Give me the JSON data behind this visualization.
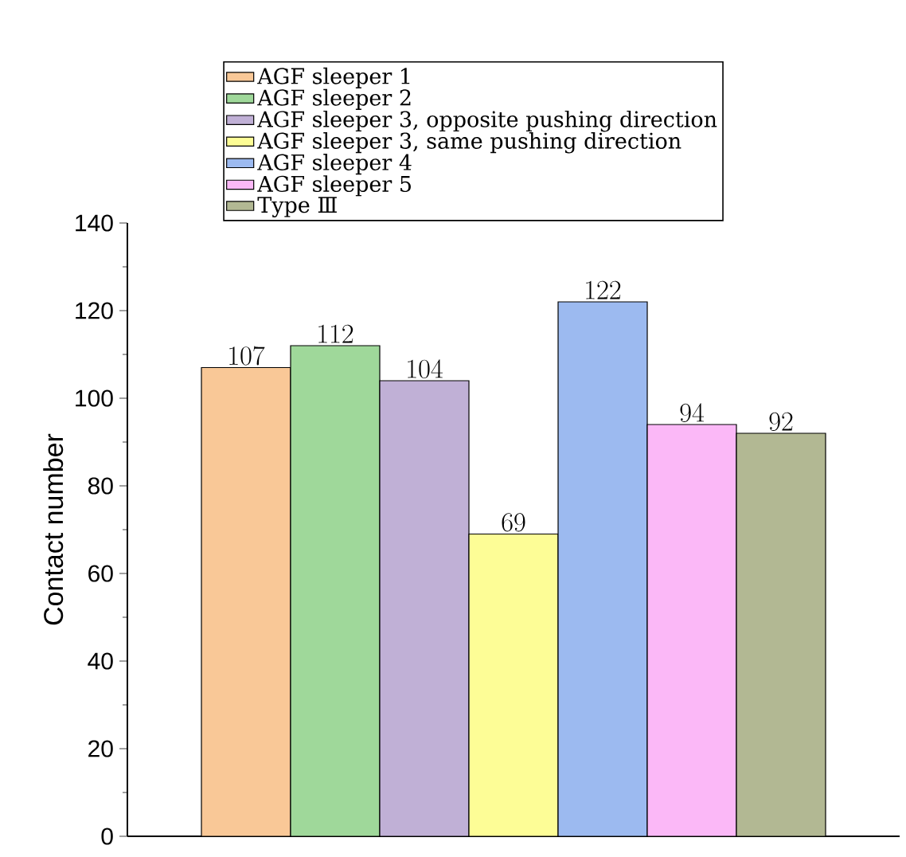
{
  "chart_data": {
    "type": "bar",
    "ylabel": "Contact number",
    "categories": [
      null
    ],
    "ylim": [
      0,
      140
    ],
    "yticks": [
      0,
      20,
      40,
      60,
      80,
      100,
      120,
      140
    ],
    "legend": "top",
    "data_labels": true,
    "series": [
      {
        "name": "AGF sleeper 1",
        "color": "#f9c897",
        "values": [
          107
        ]
      },
      {
        "name": "AGF sleeper 2",
        "color": "#9fd89a",
        "values": [
          112
        ]
      },
      {
        "name": "AGF sleeper 3, opposite pushing direction",
        "color": "#c0b0d6",
        "values": [
          104
        ]
      },
      {
        "name": "AGF sleeper 3, same pushing direction",
        "color": "#fdfd96",
        "values": [
          69
        ]
      },
      {
        "name": "AGF sleeper 4",
        "color": "#9cbaf0",
        "values": [
          122
        ]
      },
      {
        "name": "AGF sleeper 5",
        "color": "#fbb8f7",
        "values": [
          94
        ]
      },
      {
        "name": "Type Ⅲ",
        "color": "#b2b893",
        "values": [
          92
        ]
      }
    ]
  }
}
